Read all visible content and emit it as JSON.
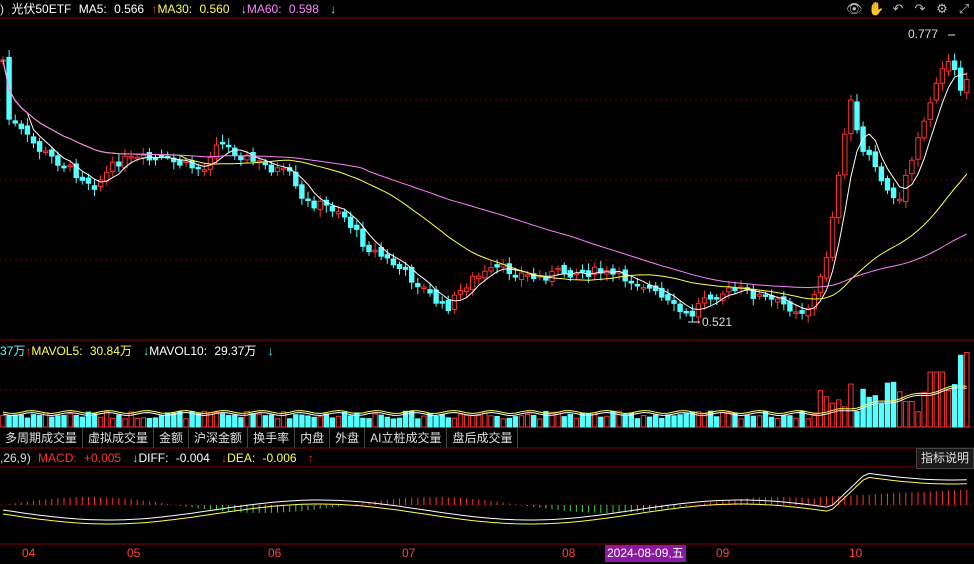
{
  "price_legend": {
    "prefix": ")",
    "title": "光伏50ETF",
    "ma5_label": "MA5:",
    "ma5_value": "0.566",
    "ma30_arrow": "↑",
    "ma30_label": "MA30:",
    "ma30_value": "0.560",
    "ma60_arrow": "↓",
    "ma60_label": "MA60:",
    "ma60_value": "0.598",
    "tail_arrow": "↓"
  },
  "volume_legend": {
    "prefix": "37万",
    "mavol5_arrow": "↑",
    "mavol5_label": "MAVOL5:",
    "mavol5_value": "30.84万",
    "mavol10_arrow": "↓",
    "mavol10_label": "MAVOL10:",
    "mavol10_value": "29.37万",
    "tail_arrow": "↓"
  },
  "macd_legend": {
    "params": ",26,9)",
    "macd_label": "MACD:",
    "macd_value": "+0.005",
    "diff_arrow": "↓",
    "diff_label": "DIFF:",
    "diff_value": "-0.004",
    "dea_arrow": "↓",
    "dea_label": "DEA:",
    "dea_value": "-0.006",
    "tail_arrow": "↑"
  },
  "annotations": {
    "high": "0.777",
    "low": "0.521"
  },
  "tabs": [
    "多周期成交量",
    "虚拟成交量",
    "金额",
    "沪深金额",
    "换手率",
    "内盘",
    "外盘",
    "AI立桩成交量",
    "盘后成交量"
  ],
  "help_button": "指标说明",
  "months": [
    "04",
    "05",
    "06",
    "07",
    "08",
    "09",
    "10"
  ],
  "date_chip": "2024-08-09,五",
  "toolbar_icons": [
    "eye-icon",
    "hand-icon",
    "undo-icon",
    "redo-icon",
    "settings-icon",
    "expand-icon"
  ],
  "colors": {
    "up": "#ff3232",
    "down": "#54ffff",
    "ma5": "#ffffff",
    "ma30": "#ffff50",
    "ma60": "#ff80ff",
    "grid": "#7a0000"
  },
  "chart_data": {
    "type": "candlestick",
    "ylim": [
      0.521,
      0.777
    ],
    "high": 0.777,
    "low": 0.521
  }
}
